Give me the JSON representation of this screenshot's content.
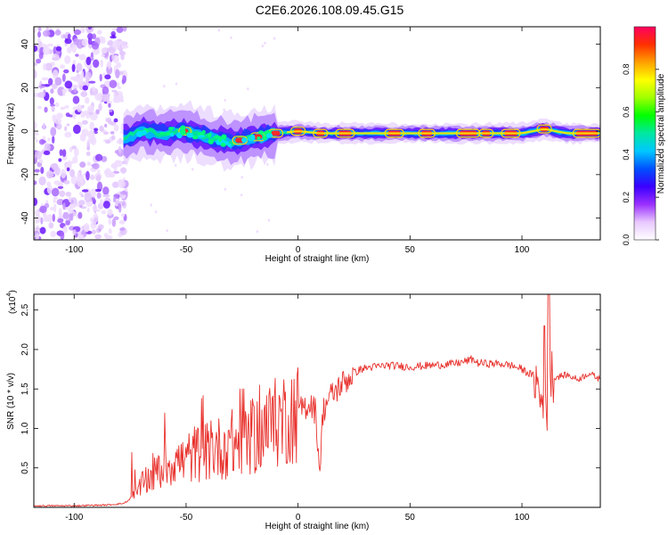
{
  "title": "C2E6.2026.108.09.45.G15",
  "chart_data": [
    {
      "type": "heatmap",
      "xlabel": "Height of straight line (km)",
      "ylabel": "Frequency (Hz)",
      "xlim": [
        -118,
        135
      ],
      "ylim": [
        -50,
        48
      ],
      "x_ticks": [
        -100,
        -50,
        0,
        50,
        100
      ],
      "y_ticks": [
        -40,
        -20,
        0,
        20,
        40
      ],
      "colorbar": {
        "label": "Normalized spectral amplitude",
        "range": [
          0,
          1
        ],
        "ticks": [
          0.0,
          0.2,
          0.4,
          0.6,
          0.8
        ],
        "colors": [
          "#ffffff",
          "#e8c8ff",
          "#9b30ff",
          "#3a00ff",
          "#0050ff",
          "#00c8ff",
          "#00e8a0",
          "#00ff00",
          "#a0ff00",
          "#ffff00",
          "#ffa000",
          "#ff3000",
          "#ff0060"
        ]
      },
      "noise_region_x": [
        -118,
        -80
      ],
      "ridge": [
        {
          "x": -78,
          "f": -3
        },
        {
          "x": -70,
          "f": 0
        },
        {
          "x": -60,
          "f": -1
        },
        {
          "x": -50,
          "f": 0
        },
        {
          "x": -40,
          "f": -3
        },
        {
          "x": -30,
          "f": -5
        },
        {
          "x": -20,
          "f": -3
        },
        {
          "x": -10,
          "f": -1
        },
        {
          "x": 0,
          "f": 0
        },
        {
          "x": 10,
          "f": -1
        },
        {
          "x": 20,
          "f": -1
        },
        {
          "x": 40,
          "f": -1
        },
        {
          "x": 60,
          "f": -1
        },
        {
          "x": 80,
          "f": -1
        },
        {
          "x": 100,
          "f": -1
        },
        {
          "x": 110,
          "f": 1
        },
        {
          "x": 120,
          "f": -1
        },
        {
          "x": 135,
          "f": -1
        }
      ]
    },
    {
      "type": "line",
      "xlabel": "Height of straight line (km)",
      "ylabel": "SNR (10 * v/v)",
      "y_multiplier": "(x10^4)",
      "xlim": [
        -118,
        135
      ],
      "ylim": [
        0,
        2.7
      ],
      "x_ticks": [
        -100,
        -50,
        0,
        50,
        100
      ],
      "y_ticks": [
        0.5,
        1.0,
        1.5,
        2.0,
        2.5
      ],
      "series": [
        {
          "color": "#e8322d",
          "x": [
            -118,
            -100,
            -85,
            -78,
            -75,
            -72,
            -70,
            -67,
            -64,
            -61,
            -58,
            -55,
            -52,
            -49,
            -46,
            -43,
            -40,
            -37,
            -34,
            -31,
            -28,
            -25,
            -22,
            -20,
            -17,
            -14,
            -11,
            -8,
            -5,
            -2,
            0,
            3,
            6,
            8,
            9,
            10,
            11,
            13,
            16,
            19,
            22,
            25,
            28,
            31,
            34,
            40,
            50,
            60,
            70,
            75,
            78,
            80,
            85,
            90,
            95,
            100,
            103,
            106,
            108,
            110,
            111,
            112,
            113,
            115,
            120,
            125,
            130,
            135
          ],
          "y": [
            0.02,
            0.02,
            0.03,
            0.05,
            0.1,
            0.18,
            0.28,
            0.35,
            0.42,
            0.48,
            0.55,
            0.6,
            0.58,
            0.63,
            0.68,
            0.72,
            0.7,
            0.76,
            0.74,
            0.82,
            0.8,
            0.88,
            0.85,
            0.9,
            0.95,
            1.0,
            1.05,
            1.1,
            1.15,
            1.2,
            1.2,
            1.28,
            1.32,
            1.2,
            0.7,
            0.5,
            1.2,
            1.35,
            1.45,
            1.55,
            1.62,
            1.7,
            1.75,
            1.77,
            1.78,
            1.8,
            1.78,
            1.8,
            1.82,
            1.85,
            1.88,
            1.83,
            1.82,
            1.82,
            1.8,
            1.75,
            1.7,
            1.65,
            1.4,
            1.25,
            1.15,
            1.6,
            1.7,
            1.65,
            1.68,
            1.62,
            1.7,
            1.62
          ]
        }
      ]
    }
  ]
}
